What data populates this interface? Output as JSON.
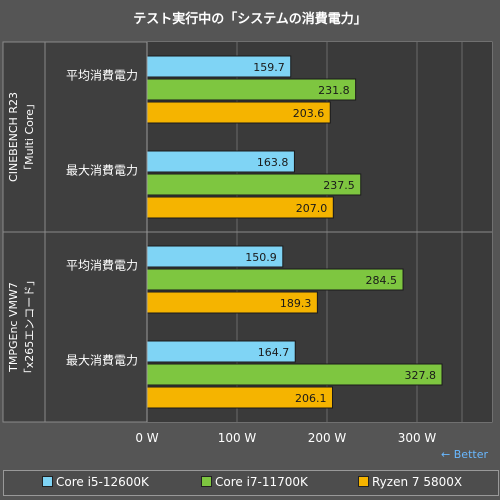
{
  "chart_data": {
    "type": "bar",
    "orientation": "horizontal",
    "title": "テスト実行中の「システムの消費電力」",
    "groups": [
      {
        "label": "CINEBENCH R23「Multi Core」",
        "label_line1": "CINEBENCH R23",
        "label_line2": "「Multi Core」",
        "categories": [
          "平均消費電力",
          "最大消費電力"
        ]
      },
      {
        "label": "TMPGEnc VMW7「x265エンコード」",
        "label_line1": "TMPGEnc VMW7",
        "label_line2": "「x265エンコード」",
        "categories": [
          "平均消費電力",
          "最大消費電力"
        ]
      }
    ],
    "series": [
      {
        "name": "Core i5-12600K",
        "color": "#7fd4f5",
        "values": [
          159.7,
          163.8,
          150.9,
          164.7
        ]
      },
      {
        "name": "Core i7-11700K",
        "color": "#7ec640",
        "values": [
          231.8,
          237.5,
          284.5,
          327.8
        ]
      },
      {
        "name": "Ryzen 7 5800X",
        "color": "#f5b400",
        "values": [
          203.6,
          207.0,
          189.3,
          206.1
        ]
      }
    ],
    "value_labels": [
      [
        "159.7",
        "163.8",
        "150.9",
        "164.7"
      ],
      [
        "231.8",
        "237.5",
        "284.5",
        "327.8"
      ],
      [
        "203.6",
        "207.0",
        "189.3",
        "206.1"
      ]
    ],
    "xlim": [
      0,
      350
    ],
    "xticks": [
      0,
      100,
      200,
      300
    ],
    "xtick_labels": [
      "0 W",
      "100 W",
      "200 W",
      "300 W"
    ],
    "grid": true,
    "legend_position": "bottom",
    "annotation": "← Better"
  }
}
